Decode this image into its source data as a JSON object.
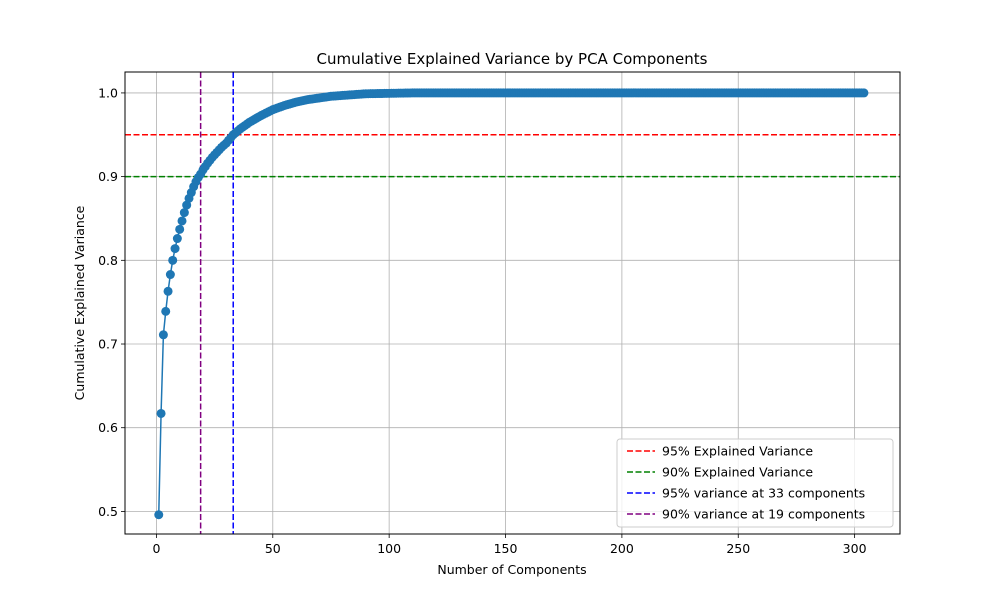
{
  "chart_data": {
    "type": "line",
    "title": "Cumulative Explained Variance by PCA Components",
    "xlabel": "Number of Components",
    "ylabel": "Cumulative Explained Variance",
    "xlim": [
      -13.5,
      319.5
    ],
    "ylim": [
      0.473,
      1.025
    ],
    "x_ticks": [
      0,
      50,
      100,
      150,
      200,
      250,
      300
    ],
    "y_ticks": [
      0.5,
      0.6,
      0.7,
      0.8,
      0.9,
      1.0
    ],
    "x_tick_labels": [
      "0",
      "50",
      "100",
      "150",
      "200",
      "250",
      "300"
    ],
    "y_tick_labels": [
      "0.5",
      "0.6",
      "0.7",
      "0.8",
      "0.9",
      "1.0"
    ],
    "grid": true,
    "legend_position": "bottom-right",
    "series": [
      {
        "color": "#1f77b4",
        "marker": "circle",
        "x_range": [
          1,
          304
        ],
        "points": [
          [
            1,
            0.496
          ],
          [
            2,
            0.617
          ],
          [
            3,
            0.711
          ],
          [
            4,
            0.739
          ],
          [
            5,
            0.763
          ],
          [
            6,
            0.783
          ],
          [
            7,
            0.8
          ],
          [
            8,
            0.814
          ],
          [
            9,
            0.826
          ],
          [
            10,
            0.837
          ],
          [
            11,
            0.847
          ],
          [
            12,
            0.857
          ],
          [
            13,
            0.866
          ],
          [
            14,
            0.874
          ],
          [
            15,
            0.881
          ],
          [
            16,
            0.888
          ],
          [
            17,
            0.894
          ],
          [
            18,
            0.899
          ],
          [
            19,
            0.903
          ],
          [
            20,
            0.908
          ],
          [
            22,
            0.916
          ],
          [
            24,
            0.923
          ],
          [
            26,
            0.929
          ],
          [
            28,
            0.935
          ],
          [
            30,
            0.94
          ],
          [
            33,
            0.95
          ],
          [
            36,
            0.957
          ],
          [
            40,
            0.965
          ],
          [
            45,
            0.973
          ],
          [
            50,
            0.98
          ],
          [
            55,
            0.985
          ],
          [
            60,
            0.989
          ],
          [
            65,
            0.992
          ],
          [
            70,
            0.994
          ],
          [
            75,
            0.996
          ],
          [
            80,
            0.997
          ],
          [
            90,
            0.999
          ],
          [
            100,
            0.9995
          ],
          [
            110,
            1.0
          ],
          [
            120,
            1.0
          ],
          [
            304,
            1.0
          ]
        ]
      }
    ],
    "reference_lines": [
      {
        "orientation": "horizontal",
        "value": 0.95,
        "color": "#ff0000",
        "style": "dashed",
        "label": "95% Explained Variance"
      },
      {
        "orientation": "horizontal",
        "value": 0.9,
        "color": "#008000",
        "style": "dashed",
        "label": "90% Explained Variance"
      },
      {
        "orientation": "vertical",
        "value": 33,
        "color": "#0000ff",
        "style": "dashed",
        "label": "95% variance at 33 components"
      },
      {
        "orientation": "vertical",
        "value": 19,
        "color": "#800080",
        "style": "dashed",
        "label": "90% variance at 19 components"
      }
    ]
  }
}
